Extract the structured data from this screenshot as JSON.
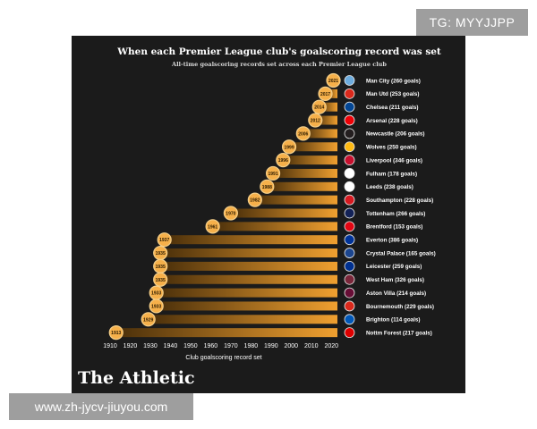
{
  "watermarks": {
    "top": "TG: MYYJJPP",
    "bottom": "www.zh-jycv-jiuyou.com"
  },
  "brand": "The Athletic",
  "colors": {
    "background": "#1b1b1b",
    "bar_dark": "#4a2f0a",
    "bar_light": "#f0a030",
    "marker": "#f6b04a",
    "marker_stroke": "#f4cf8a"
  },
  "chart_data": {
    "type": "bar",
    "orientation": "horizontal",
    "title": "When each Premier League club's goalscoring record was set",
    "subtitle": "All-time goalscoring records set across each Premier League club",
    "xlabel": "Club goalscoring record set",
    "ylabel": "",
    "xlim": [
      1908,
      2023
    ],
    "xticks": [
      1910,
      1920,
      1930,
      1940,
      1950,
      1960,
      1970,
      1980,
      1990,
      2000,
      2010,
      2020
    ],
    "bar_end_year": 2023,
    "categories": [
      "Man City (260 goals)",
      "Man Utd (253 goals)",
      "Chelsea (211 goals)",
      "Arsenal (228 goals)",
      "Newcastle (206 goals)",
      "Wolves (250 goals)",
      "Liverpool (346 goals)",
      "Fulham (178 goals)",
      "Leeds (238 goals)",
      "Southampton (228 goals)",
      "Tottenham (266 goals)",
      "Brentford (153 goals)",
      "Everton (386 goals)",
      "Crystal Palace (165 goals)",
      "Leicester (259 goals)",
      "West Ham (326 goals)",
      "Aston Villa (214 goals)",
      "Bournemouth (229 goals)",
      "Brighton (114 goals)",
      "Nottm Forest (217 goals)"
    ],
    "values": [
      2021,
      2017,
      2014,
      2012,
      2006,
      1999,
      1996,
      1991,
      1988,
      1982,
      1970,
      1961,
      1937,
      1935,
      1935,
      1935,
      1933,
      1933,
      1929,
      1913
    ],
    "club_colors": [
      "#6cabdd",
      "#da291c",
      "#034694",
      "#ef0107",
      "#241f20",
      "#fdb913",
      "#c8102e",
      "#ffffff",
      "#ffffff",
      "#d71920",
      "#132257",
      "#e30613",
      "#003399",
      "#1b458f",
      "#003090",
      "#7a263a",
      "#670e36",
      "#da291c",
      "#0057b8",
      "#dd0000"
    ]
  }
}
